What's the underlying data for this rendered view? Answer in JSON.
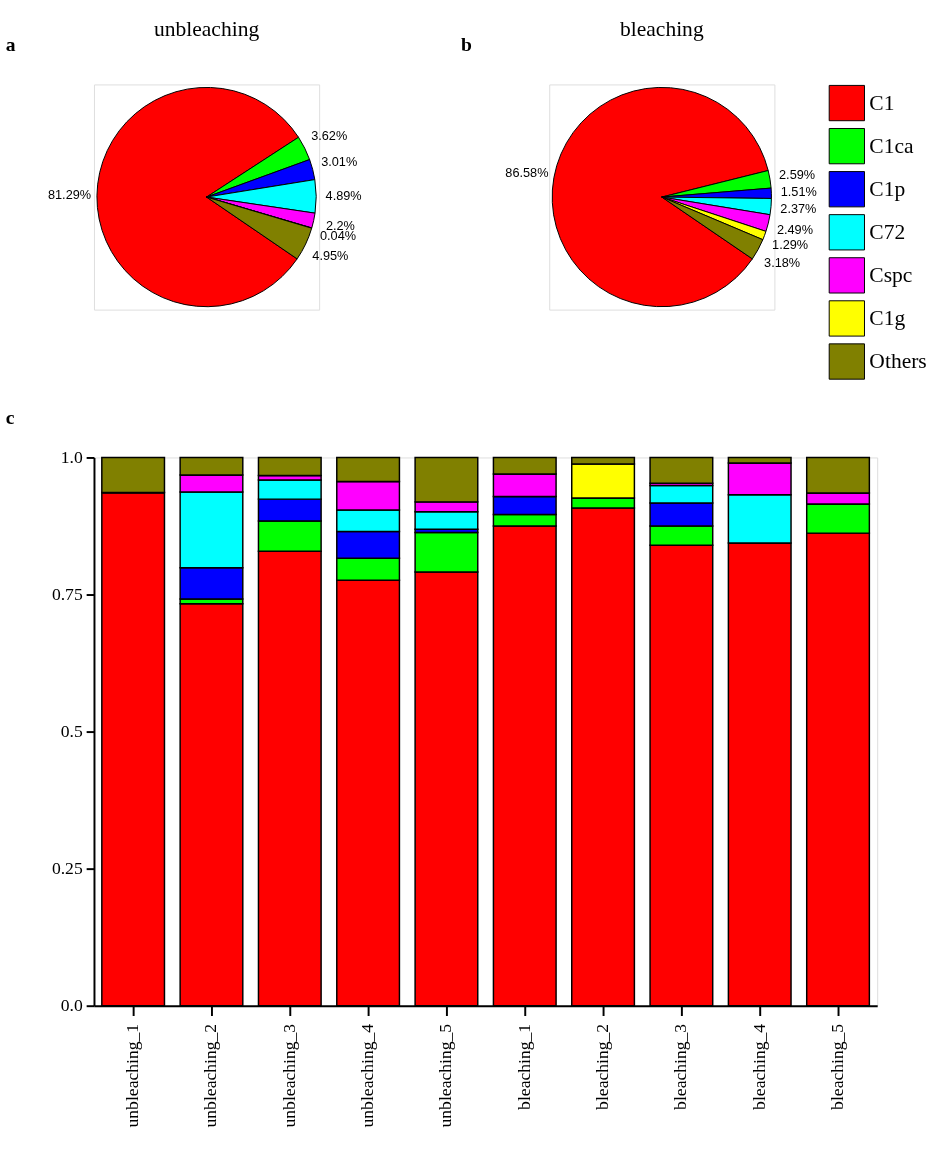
{
  "chart_data": [
    {
      "type": "pie",
      "title": "unbleaching",
      "annotations": [
        "a"
      ],
      "legend": false,
      "categories": [
        null,
        null,
        null,
        null,
        null,
        null,
        null
      ],
      "values": [
        81.29,
        3.62,
        3.01,
        4.89,
        2.2,
        0.04,
        4.95
      ],
      "value_labels": [
        "81.29%",
        "3.62%",
        "3.01%",
        "4.89%",
        "2.2%",
        "0.04%",
        "4.95%"
      ],
      "colors": [
        "#ff0000",
        "#00ff00",
        "#0000ff",
        "#00ffff",
        "#ff00ff",
        "#ffff00",
        "#808000"
      ]
    },
    {
      "type": "pie",
      "title": "bleaching",
      "annotations": [
        "b"
      ],
      "legend": "right",
      "categories": [
        "C1",
        "C1ca",
        "C1p",
        "C72",
        "Cspc",
        "C1g",
        "Others"
      ],
      "values": [
        86.58,
        2.59,
        1.51,
        2.37,
        2.49,
        1.29,
        3.18
      ],
      "value_labels": [
        "86.58%",
        "2.59%",
        "1.51%",
        "2.37%",
        "2.49%",
        "1.29%",
        "3.18%"
      ],
      "colors": [
        "#ff0000",
        "#00ff00",
        "#0000ff",
        "#00ffff",
        "#ff00ff",
        "#ffff00",
        "#808000"
      ]
    },
    {
      "type": "bar",
      "stacked": true,
      "annotations": [
        "c"
      ],
      "legend": false,
      "grid": false,
      "categories": [
        "unbleaching_1",
        "unbleaching_2",
        "unbleaching_3",
        "unbleaching_4",
        "unbleaching_5",
        "bleaching_1",
        "bleaching_2",
        "bleaching_3",
        "bleaching_4",
        "bleaching_5"
      ],
      "ylim": [
        0,
        1
      ],
      "yticks": [
        {
          "value": 0,
          "label": "0.0"
        },
        0.25,
        0.5,
        0.75,
        {
          "value": 1,
          "label": "1.0"
        }
      ],
      "series": [
        {
          "color": "#ff0000",
          "values": [
            0.936,
            0.733,
            0.829,
            0.776,
            0.791,
            0.875,
            0.908,
            0.84,
            0.844,
            0.862
          ]
        },
        {
          "color": "#00ff00",
          "values": [
            0,
            0.009,
            0.055,
            0.04,
            0.072,
            0.021,
            0.018,
            0.035,
            0,
            0.053
          ]
        },
        {
          "color": "#0000ff",
          "values": [
            0,
            0.057,
            0.04,
            0.049,
            0.006,
            0.033,
            0,
            0.042,
            0,
            0
          ]
        },
        {
          "color": "#00ffff",
          "values": [
            0,
            0.138,
            0.035,
            0.039,
            0.032,
            0,
            0,
            0.032,
            0.088,
            0
          ]
        },
        {
          "color": "#ff00ff",
          "values": [
            0,
            0.031,
            0.008,
            0.052,
            0.018,
            0.041,
            0,
            0.004,
            0.058,
            0.02
          ]
        },
        {
          "color": "#ffff00",
          "values": [
            0,
            0,
            0,
            0,
            0,
            0,
            0.062,
            0,
            0,
            0
          ]
        },
        {
          "color": "#808000",
          "values": [
            0.064,
            0.032,
            0.033,
            0.044,
            0.081,
            0.03,
            0.012,
            0.047,
            0.01,
            0.065
          ]
        }
      ]
    }
  ]
}
